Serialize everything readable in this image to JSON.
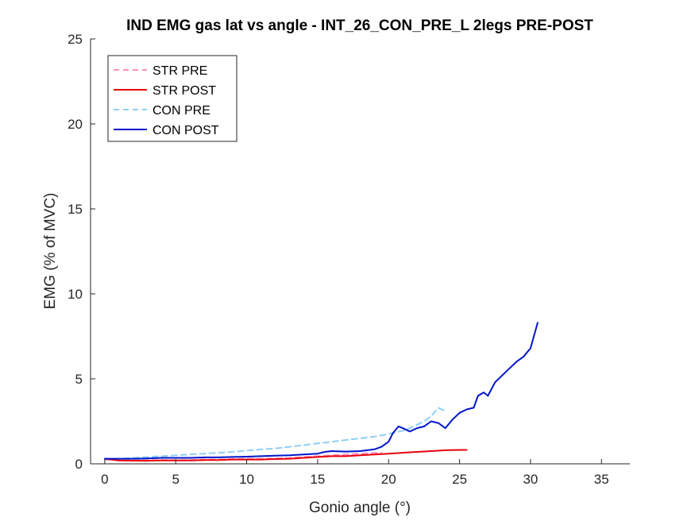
{
  "chart_data": {
    "type": "line",
    "title": "IND EMG gas lat vs angle - INT_26_CON_PRE_L 2legs PRE-POST",
    "xlabel": "Gonio angle (°)",
    "ylabel": "EMG (% of MVC)",
    "xlim": [
      -1,
      37
    ],
    "ylim": [
      0,
      25
    ],
    "xticks": [
      0,
      5,
      10,
      15,
      20,
      25,
      30,
      35
    ],
    "yticks": [
      0,
      5,
      10,
      15,
      20,
      25
    ],
    "legend_position": "top-left",
    "series": [
      {
        "name": "STR PRE",
        "color": "#ff8fb8",
        "style": "dashed",
        "x": [
          0,
          1,
          2,
          3,
          4,
          5,
          6,
          7,
          8,
          9,
          10,
          11,
          12,
          13,
          14,
          15,
          16,
          17,
          18,
          19,
          19.5
        ],
        "y": [
          0.25,
          0.2,
          0.2,
          0.2,
          0.22,
          0.2,
          0.22,
          0.25,
          0.25,
          0.28,
          0.3,
          0.3,
          0.32,
          0.35,
          0.4,
          0.45,
          0.5,
          0.55,
          0.6,
          0.65,
          0.65
        ]
      },
      {
        "name": "STR POST",
        "color": "#e8000b",
        "style": "solid",
        "x": [
          0,
          1,
          2,
          3,
          4,
          5,
          6,
          7,
          8,
          9,
          10,
          11,
          12,
          13,
          14,
          15,
          16,
          17,
          18,
          19,
          20,
          21,
          22,
          23,
          24,
          25,
          25.5
        ],
        "y": [
          0.3,
          0.2,
          0.18,
          0.18,
          0.2,
          0.2,
          0.2,
          0.22,
          0.22,
          0.25,
          0.25,
          0.25,
          0.28,
          0.3,
          0.35,
          0.4,
          0.45,
          0.45,
          0.5,
          0.55,
          0.6,
          0.65,
          0.7,
          0.75,
          0.8,
          0.82,
          0.82
        ]
      },
      {
        "name": "CON PRE",
        "color": "#8ecff5",
        "style": "dashed",
        "x": [
          0,
          1,
          2,
          3,
          4,
          5,
          6,
          7,
          8,
          9,
          10,
          11,
          12,
          13,
          14,
          15,
          16,
          17,
          18,
          19,
          20,
          21,
          21.5,
          22,
          22.5,
          23,
          23.5,
          24
        ],
        "y": [
          0.3,
          0.3,
          0.35,
          0.4,
          0.45,
          0.5,
          0.55,
          0.6,
          0.65,
          0.7,
          0.78,
          0.85,
          0.9,
          1.0,
          1.1,
          1.2,
          1.3,
          1.4,
          1.5,
          1.6,
          1.75,
          1.95,
          2.1,
          2.3,
          2.5,
          2.8,
          3.3,
          3.1
        ]
      },
      {
        "name": "CON POST",
        "color": "#0016cc",
        "style": "solid",
        "x": [
          0,
          1,
          2,
          3,
          4,
          5,
          6,
          7,
          8,
          9,
          10,
          11,
          12,
          13,
          14,
          15,
          15.5,
          16,
          17,
          18,
          19,
          19.5,
          20,
          20.3,
          20.7,
          21,
          21.5,
          22,
          22.5,
          23,
          23.5,
          24,
          24.5,
          25,
          25.5,
          26,
          26.3,
          26.7,
          27,
          27.5,
          28,
          28.5,
          29,
          29.5,
          30,
          30.5
        ],
        "y": [
          0.3,
          0.3,
          0.3,
          0.32,
          0.35,
          0.35,
          0.35,
          0.38,
          0.38,
          0.4,
          0.42,
          0.45,
          0.48,
          0.5,
          0.55,
          0.6,
          0.7,
          0.75,
          0.72,
          0.75,
          0.85,
          1.0,
          1.3,
          1.8,
          2.2,
          2.1,
          1.9,
          2.1,
          2.2,
          2.5,
          2.4,
          2.1,
          2.6,
          3.0,
          3.2,
          3.3,
          4.0,
          4.2,
          4.0,
          4.8,
          5.2,
          5.6,
          6.0,
          6.3,
          6.8,
          8.3
        ]
      }
    ]
  }
}
